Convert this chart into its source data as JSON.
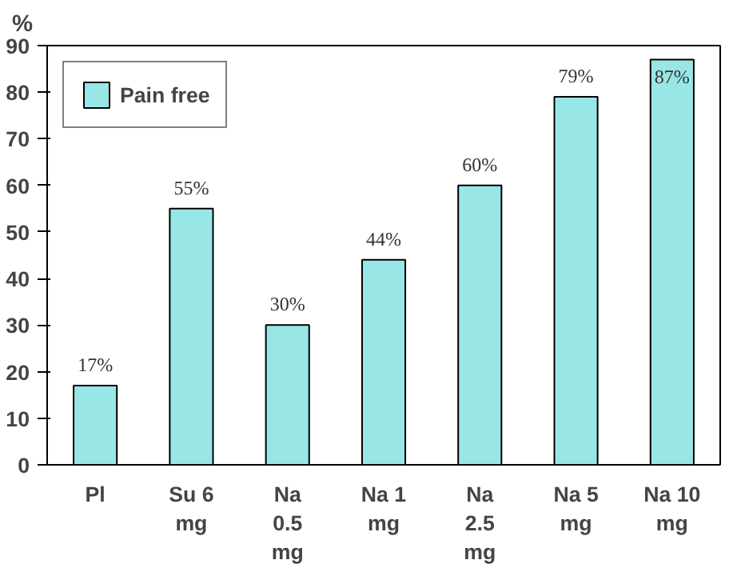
{
  "chart_data": {
    "type": "bar",
    "ylabel": "%",
    "categories": [
      "Pl",
      "Su 6 mg",
      "Na 0.5 mg",
      "Na 1 mg",
      "Na 2.5 mg",
      "Na 5 mg",
      "Na 10 mg"
    ],
    "series": [
      {
        "name": "Pain free",
        "color": "#99e6e6",
        "values": [
          17,
          55,
          30,
          44,
          60,
          79,
          87
        ],
        "value_labels": [
          "17%",
          "55%",
          "30%",
          "44%",
          "60%",
          "79%",
          "87%"
        ]
      }
    ],
    "ylim": [
      0,
      90
    ],
    "yticks": [
      0,
      10,
      20,
      30,
      40,
      50,
      60,
      70,
      80,
      90
    ],
    "legend": "top left"
  }
}
